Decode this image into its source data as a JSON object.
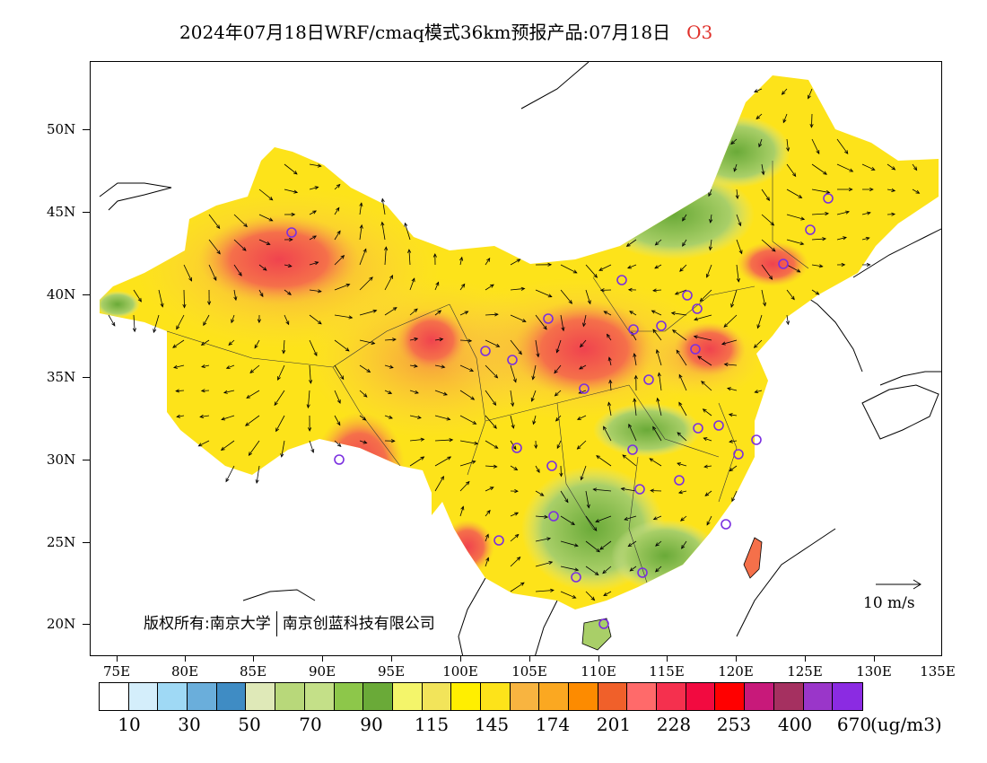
{
  "header": {
    "title": "2024年07月18日WRF/cmaq模式36km预报产品:07月18日",
    "species": "O3"
  },
  "map": {
    "lat_labels": [
      "50N",
      "45N",
      "40N",
      "35N",
      "30N",
      "25N",
      "20N"
    ],
    "lon_labels": [
      "75E",
      "80E",
      "85E",
      "90E",
      "95E",
      "100E",
      "105E",
      "110E",
      "115E",
      "120E",
      "125E",
      "130E",
      "135E"
    ],
    "copyright_prefix": "版权所有:南京大学",
    "copyright_suffix": "南京创蓝科技有限公司",
    "wind_reference": "10 m/s",
    "station_marker_color": "#7a2fe0"
  },
  "colorbar": {
    "colors": [
      "#ffffff",
      "#d4eefb",
      "#9fd9f5",
      "#6aaedb",
      "#3f8cc4",
      "#dfe9b8",
      "#b8d87a",
      "#c4e088",
      "#8dc74a",
      "#6aaa38",
      "#f4f56a",
      "#f2e45a",
      "#ffef00",
      "#fde31a",
      "#f8b440",
      "#fba821",
      "#fd8b00",
      "#f0602a",
      "#ff6a6a",
      "#f5304e",
      "#f20a40",
      "#ff0000",
      "#c8197a",
      "#a53060",
      "#9a36c9",
      "#8b2be2"
    ],
    "labels": [
      "10",
      "30",
      "50",
      "70",
      "90",
      "115",
      "145",
      "174",
      "201",
      "228",
      "253",
      "400",
      "670"
    ],
    "unit": "(ug/m3)"
  }
}
